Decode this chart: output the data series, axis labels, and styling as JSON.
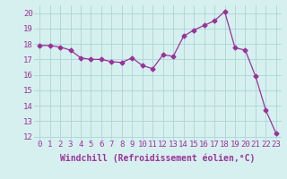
{
  "x": [
    0,
    1,
    2,
    3,
    4,
    5,
    6,
    7,
    8,
    9,
    10,
    11,
    12,
    13,
    14,
    15,
    16,
    17,
    18,
    19,
    20,
    21,
    22,
    23
  ],
  "y": [
    17.9,
    17.9,
    17.8,
    17.6,
    17.1,
    17.0,
    17.0,
    16.85,
    16.8,
    17.1,
    16.6,
    16.4,
    17.3,
    17.2,
    18.5,
    18.9,
    19.2,
    19.5,
    20.1,
    17.75,
    17.6,
    15.9,
    13.7,
    12.2
  ],
  "line_color": "#993399",
  "marker": "D",
  "marker_size": 2.5,
  "bg_color": "#d6f0f0",
  "grid_color": "#b0d8d8",
  "xlabel": "Windchill (Refroidissement éolien,°C)",
  "xlabel_fontsize": 7,
  "ylim": [
    11.8,
    20.5
  ],
  "xlim": [
    -0.5,
    23.5
  ],
  "yticks": [
    12,
    13,
    14,
    15,
    16,
    17,
    18,
    19,
    20
  ],
  "xticks": [
    0,
    1,
    2,
    3,
    4,
    5,
    6,
    7,
    8,
    9,
    10,
    11,
    12,
    13,
    14,
    15,
    16,
    17,
    18,
    19,
    20,
    21,
    22,
    23
  ],
  "tick_fontsize": 6.5,
  "label_color": "#993399"
}
